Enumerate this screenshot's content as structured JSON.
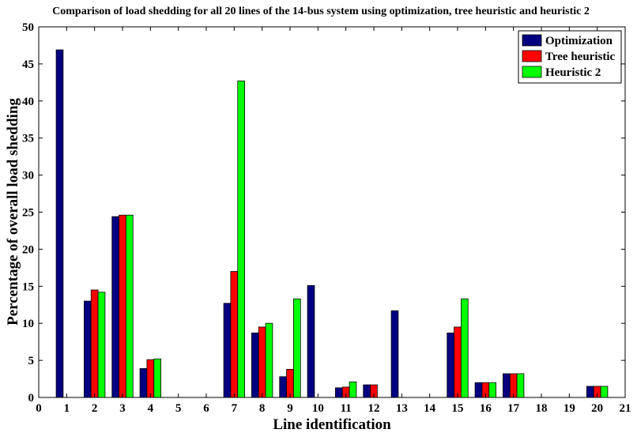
{
  "chart_data": {
    "type": "bar",
    "title": "Comparison of load shedding for all 20 lines of the 14-bus system using optimization, tree heuristic and heuristic 2",
    "xlabel": "Line identification",
    "ylabel": "Percentage of overall load shedding",
    "xlim": [
      0,
      21
    ],
    "ylim": [
      0,
      50
    ],
    "x_ticks": [
      0,
      1,
      2,
      3,
      4,
      5,
      6,
      7,
      8,
      9,
      10,
      11,
      12,
      13,
      14,
      15,
      16,
      17,
      18,
      19,
      20,
      21
    ],
    "y_ticks": [
      0,
      5,
      10,
      15,
      20,
      25,
      30,
      35,
      40,
      45,
      50
    ],
    "grid": false,
    "legend_position": "top-right",
    "categories": [
      1,
      2,
      3,
      4,
      5,
      6,
      7,
      8,
      9,
      10,
      11,
      12,
      13,
      14,
      15,
      16,
      17,
      18,
      19,
      20
    ],
    "series": [
      {
        "name": "Optimization",
        "color": "#000080",
        "values": [
          46.9,
          13.0,
          24.4,
          3.9,
          0,
          0,
          12.7,
          8.7,
          2.8,
          15.1,
          1.3,
          1.7,
          11.7,
          0,
          8.7,
          2.0,
          3.2,
          0,
          0,
          1.5
        ]
      },
      {
        "name": "Tree heuristic",
        "color": "#ff0000",
        "values": [
          0,
          14.5,
          24.6,
          5.1,
          0,
          0,
          17.0,
          9.5,
          3.8,
          0,
          1.4,
          1.7,
          0,
          0,
          9.5,
          2.0,
          3.2,
          0,
          0,
          1.5
        ]
      },
      {
        "name": "Heuristic 2",
        "color": "#00ff00",
        "values": [
          0,
          14.2,
          24.6,
          5.2,
          0,
          0,
          42.7,
          10.0,
          13.3,
          0,
          2.1,
          0,
          0,
          0,
          13.3,
          2.0,
          3.2,
          0,
          0,
          1.5
        ]
      }
    ]
  }
}
